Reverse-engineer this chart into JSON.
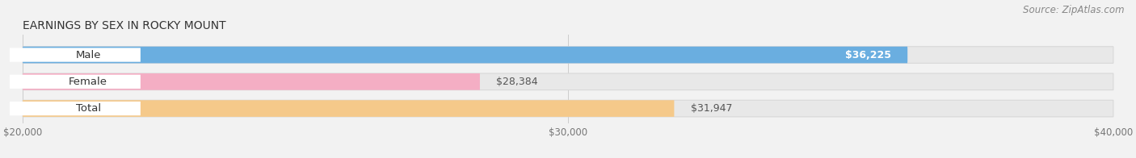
{
  "title": "EARNINGS BY SEX IN ROCKY MOUNT",
  "source": "Source: ZipAtlas.com",
  "categories": [
    "Male",
    "Female",
    "Total"
  ],
  "values": [
    36225,
    28384,
    31947
  ],
  "bar_colors": [
    "#6aaee0",
    "#f4aec4",
    "#f5c98a"
  ],
  "value_labels": [
    "$36,225",
    "$28,384",
    "$31,947"
  ],
  "xmin": 20000,
  "xmax": 40000,
  "xticks": [
    20000,
    30000,
    40000
  ],
  "xticklabels": [
    "$20,000",
    "$30,000",
    "$40,000"
  ],
  "title_fontsize": 10,
  "source_fontsize": 8.5,
  "bar_label_fontsize": 9.5,
  "value_label_fontsize": 9,
  "bg_color": "#f2f2f2"
}
